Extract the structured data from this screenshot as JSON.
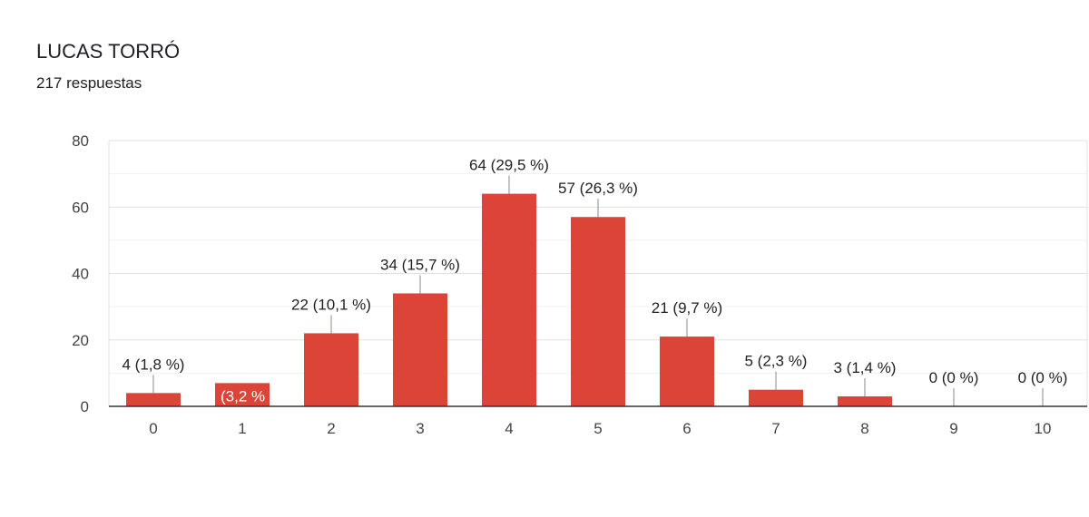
{
  "header": {
    "title": "LUCAS TORRÓ",
    "subtitle": "217 respuestas"
  },
  "chart_data": {
    "type": "bar",
    "categories": [
      "0",
      "1",
      "2",
      "3",
      "4",
      "5",
      "6",
      "7",
      "8",
      "9",
      "10"
    ],
    "values": [
      4,
      7,
      22,
      34,
      64,
      57,
      21,
      5,
      3,
      0,
      0
    ],
    "data_labels": [
      "4 (1,8 %)",
      "(3,2 %",
      "22 (10,1 %)",
      "34 (15,7 %)",
      "64 (29,5 %)",
      "57 (26,3 %)",
      "21 (9,7 %)",
      "5 (2,3 %)",
      "3 (1,4 %)",
      "0 (0 %)",
      "0 (0 %)"
    ],
    "y_ticks": [
      "0",
      "20",
      "40",
      "60",
      "80"
    ],
    "ylim": [
      0,
      80
    ],
    "grid": true,
    "bar_color": "#db4437",
    "inside_label_color": "#ffffff"
  }
}
